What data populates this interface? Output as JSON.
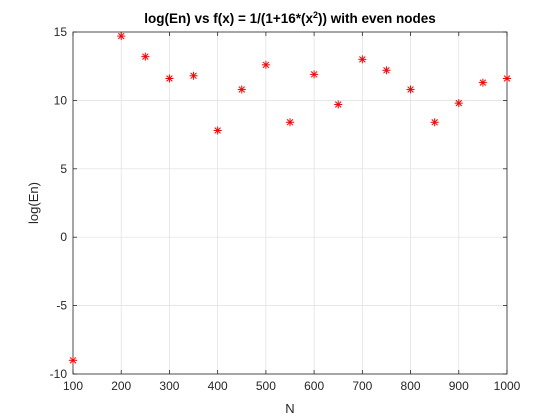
{
  "chart_data": {
    "type": "scatter",
    "title": {
      "prefix": "log(En) vs f(x) = 1/(1+16*(x",
      "superscript": "2",
      "suffix": ")) with even nodes"
    },
    "xlabel": "N",
    "ylabel": "log(En)",
    "xlim": [
      100,
      1000
    ],
    "ylim": [
      -10,
      15
    ],
    "xticks": [
      100,
      200,
      300,
      400,
      500,
      600,
      700,
      800,
      900,
      1000
    ],
    "yticks": [
      -10,
      -5,
      0,
      5,
      10,
      15
    ],
    "grid": true,
    "marker": "asterisk",
    "marker_color": "#ff0000",
    "series": [
      {
        "x": [
          100,
          200,
          250,
          300,
          350,
          400,
          450,
          500,
          550,
          600,
          650,
          700,
          750,
          800,
          850,
          900,
          950,
          1000
        ],
        "y": [
          -9.0,
          14.7,
          13.2,
          11.6,
          11.8,
          7.8,
          10.8,
          12.6,
          8.4,
          11.9,
          9.7,
          13.0,
          12.2,
          10.8,
          8.4,
          9.8,
          11.3,
          11.6
        ]
      }
    ]
  }
}
